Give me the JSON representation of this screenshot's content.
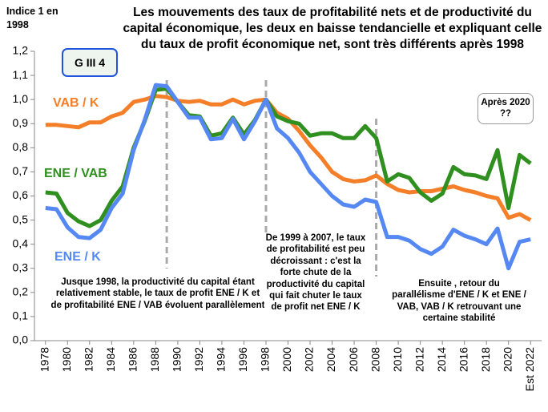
{
  "chart_data": {
    "type": "line",
    "title": "Les mouvements des taux de profitabilité nets et de productivité du capital économique, les deux en baisse tendancielle et expliquant celle du taux de profit économique net, sont très différents après 1998",
    "y_label": "Indice 1 en 1998",
    "badge": "G III 4",
    "x": [
      1978,
      1979,
      1980,
      1981,
      1982,
      1983,
      1984,
      1985,
      1986,
      1987,
      1988,
      1989,
      1990,
      1991,
      1992,
      1993,
      1994,
      1995,
      1996,
      1997,
      1998,
      1999,
      2000,
      2001,
      2002,
      2003,
      2004,
      2005,
      2006,
      2007,
      2008,
      2009,
      2010,
      2011,
      2012,
      2013,
      2014,
      2015,
      2016,
      2017,
      2018,
      2019,
      2020,
      2021,
      2022
    ],
    "series": [
      {
        "name": "VAB / K",
        "color": "#f47f28",
        "values": [
          0.895,
          0.895,
          0.89,
          0.885,
          0.905,
          0.905,
          0.93,
          0.945,
          0.99,
          1.0,
          1.015,
          1.01,
          0.995,
          0.99,
          0.995,
          0.98,
          0.98,
          1.0,
          0.98,
          0.995,
          1.0,
          0.945,
          0.92,
          0.87,
          0.81,
          0.76,
          0.7,
          0.67,
          0.66,
          0.665,
          0.685,
          0.65,
          0.625,
          0.615,
          0.62,
          0.62,
          0.63,
          0.64,
          0.625,
          0.615,
          0.6,
          0.59,
          0.51,
          0.525,
          0.5
        ]
      },
      {
        "name": "ENE / VAB",
        "color": "#2f8f1f",
        "values": [
          0.615,
          0.61,
          0.53,
          0.495,
          0.475,
          0.5,
          0.58,
          0.64,
          0.8,
          0.91,
          1.04,
          1.045,
          0.99,
          0.935,
          0.93,
          0.85,
          0.86,
          0.925,
          0.855,
          0.915,
          1.0,
          0.93,
          0.91,
          0.9,
          0.85,
          0.86,
          0.86,
          0.84,
          0.84,
          0.89,
          0.84,
          0.66,
          0.69,
          0.675,
          0.615,
          0.58,
          0.61,
          0.72,
          0.69,
          0.685,
          0.67,
          0.79,
          0.55,
          0.77,
          0.735
        ]
      },
      {
        "name": "ENE / K",
        "color": "#5588f2",
        "values": [
          0.55,
          0.545,
          0.47,
          0.43,
          0.425,
          0.46,
          0.55,
          0.61,
          0.79,
          0.915,
          1.06,
          1.055,
          0.99,
          0.925,
          0.925,
          0.835,
          0.84,
          0.92,
          0.835,
          0.91,
          1.0,
          0.88,
          0.84,
          0.78,
          0.7,
          0.65,
          0.6,
          0.565,
          0.555,
          0.585,
          0.575,
          0.43,
          0.43,
          0.415,
          0.38,
          0.36,
          0.39,
          0.46,
          0.435,
          0.42,
          0.4,
          0.465,
          0.3,
          0.41,
          0.42
        ]
      }
    ],
    "xlim": [
      1977,
      2023
    ],
    "xticks": [
      1978,
      1980,
      1982,
      1984,
      1986,
      1988,
      1990,
      1992,
      1994,
      1996,
      1998,
      2000,
      2002,
      2004,
      2006,
      2008,
      2010,
      2012,
      2014,
      2016,
      2018,
      2020,
      {
        "value": 2022,
        "label": "Est 2022"
      }
    ],
    "ylim": [
      0,
      1.2
    ],
    "yticks": [
      {
        "value": 0,
        "label": "0,0"
      },
      {
        "value": 0.1,
        "label": "0,1"
      },
      {
        "value": 0.2,
        "label": "0,2"
      },
      {
        "value": 0.3,
        "label": "0,3"
      },
      {
        "value": 0.4,
        "label": "0,4"
      },
      {
        "value": 0.5,
        "label": "0,5"
      },
      {
        "value": 0.6,
        "label": "0,6"
      },
      {
        "value": 0.7,
        "label": "0,7"
      },
      {
        "value": 0.8,
        "label": "0,8"
      },
      {
        "value": 0.9,
        "label": "0,9"
      },
      {
        "value": 1,
        "label": "1,0"
      },
      {
        "value": 1.1,
        "label": "1,1"
      },
      {
        "value": 1.2,
        "label": "1,2"
      }
    ],
    "vlines": [
      1989,
      1998,
      2008
    ],
    "annotations": [
      "Jusque 1998, la productivité du capital étant relativement stable, le taux de profit ENE / K et de profitabilité ENE / VAB évoluent parallèlement",
      "De 1999 à 2007, le taux de profitabilité est peu décroissant : c'est la forte chute de la productivité du capital qui fait chuter le taux de profit net ENE / K",
      "Ensuite , retour du parallélisme d'ENE / K et ENE / VAB, VAB / K retrouvant une certaine stabilité",
      "Après 2020 ??"
    ]
  }
}
